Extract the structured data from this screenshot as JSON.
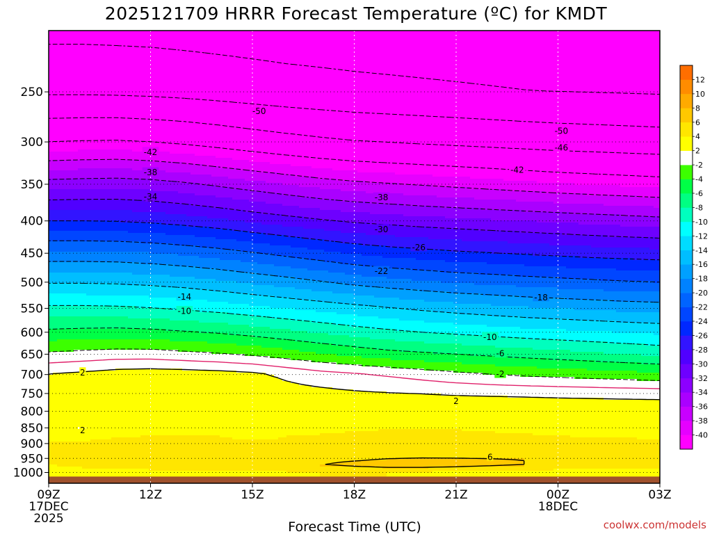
{
  "title": "2025121709 HRRR Forecast Temperature (ºC) for KMDT",
  "credit": "coolwx.com/models",
  "chart_data": {
    "type": "heatmap",
    "title": "2025121709 HRRR Forecast Temperature (ºC) for KMDT",
    "xlabel": "Forecast Time (UTC)",
    "ylabel": "",
    "x_range_hours_from_09Z": [
      0,
      18
    ],
    "y_range_hPa": [
      1040,
      200
    ],
    "y_scale": "log-pressure",
    "x_ticks": [
      {
        "h": 0,
        "lines": [
          "09Z",
          "17DEC",
          "2025"
        ]
      },
      {
        "h": 3,
        "lines": [
          "12Z"
        ]
      },
      {
        "h": 6,
        "lines": [
          "15Z"
        ]
      },
      {
        "h": 9,
        "lines": [
          "18Z"
        ]
      },
      {
        "h": 12,
        "lines": [
          "21Z"
        ]
      },
      {
        "h": 15,
        "lines": [
          "00Z",
          "18DEC"
        ]
      },
      {
        "h": 18,
        "lines": [
          "03Z"
        ]
      }
    ],
    "y_ticks": [
      250,
      300,
      350,
      400,
      450,
      500,
      550,
      600,
      650,
      700,
      750,
      800,
      850,
      900,
      950,
      1000
    ],
    "colorbar": [
      {
        "lo": -42,
        "hi": -40,
        "color": "#ff00ff",
        "label": "-40"
      },
      {
        "lo": -40,
        "hi": -38,
        "color": "#e600ff",
        "label": "-38"
      },
      {
        "lo": -38,
        "hi": -36,
        "color": "#c800ff",
        "label": "-36"
      },
      {
        "lo": -36,
        "hi": -34,
        "color": "#aa00ff",
        "label": "-34"
      },
      {
        "lo": -34,
        "hi": -32,
        "color": "#8c00ff",
        "label": "-32"
      },
      {
        "lo": -32,
        "hi": -30,
        "color": "#6e00ff",
        "label": "-30"
      },
      {
        "lo": -30,
        "hi": -28,
        "color": "#5000ff",
        "label": "-28"
      },
      {
        "lo": -28,
        "hi": -26,
        "color": "#3214ff",
        "label": "-26"
      },
      {
        "lo": -26,
        "hi": -24,
        "color": "#0028ff",
        "label": "-24"
      },
      {
        "lo": -24,
        "hi": -22,
        "color": "#0046ff",
        "label": "-22"
      },
      {
        "lo": -22,
        "hi": -20,
        "color": "#0064ff",
        "label": "-20"
      },
      {
        "lo": -20,
        "hi": -18,
        "color": "#0082ff",
        "label": "-18"
      },
      {
        "lo": -18,
        "hi": -16,
        "color": "#00a0ff",
        "label": "-16"
      },
      {
        "lo": -16,
        "hi": -14,
        "color": "#00beff",
        "label": "-14"
      },
      {
        "lo": -14,
        "hi": -12,
        "color": "#00dcff",
        "label": "-12"
      },
      {
        "lo": -12,
        "hi": -10,
        "color": "#00ffff",
        "label": "-10"
      },
      {
        "lo": -10,
        "hi": -8,
        "color": "#00ffbe",
        "label": "-8"
      },
      {
        "lo": -8,
        "hi": -6,
        "color": "#00ff82",
        "label": "-6"
      },
      {
        "lo": -6,
        "hi": -4,
        "color": "#00ff46",
        "label": "-4"
      },
      {
        "lo": -4,
        "hi": -2,
        "color": "#3cff00",
        "label": "-2"
      },
      {
        "lo": -2,
        "hi": 2,
        "color": "#ffffff",
        "label": "2"
      },
      {
        "lo": 2,
        "hi": 4,
        "color": "#ffff00",
        "label": "4"
      },
      {
        "lo": 4,
        "hi": 6,
        "color": "#ffe600",
        "label": "6"
      },
      {
        "lo": 6,
        "hi": 8,
        "color": "#ffc800",
        "label": "8"
      },
      {
        "lo": 8,
        "hi": 10,
        "color": "#ffaa00",
        "label": "10"
      },
      {
        "lo": 10,
        "hi": 12,
        "color": "#ff8c00",
        "label": "12"
      },
      {
        "lo": 12,
        "hi": 14,
        "color": "#ff6e00",
        "label": ""
      }
    ],
    "ground_color": "#a0522d",
    "series": [
      {
        "hPa": 1000,
        "values": [
          2.5,
          2.7,
          2.8,
          2.8,
          3.0,
          3.2,
          3.5,
          3.8,
          4.0,
          4.1,
          4.0,
          3.8,
          3.4,
          3.2,
          3.0,
          2.8,
          2.6,
          2.5,
          2.5
        ]
      },
      {
        "hPa": 975,
        "values": [
          3.8,
          4.6,
          5.6,
          5.8,
          5.8,
          5.7,
          5.6,
          5.7,
          6.0,
          6.5,
          6.9,
          7.0,
          6.9,
          6.5,
          6.0,
          5.7,
          5.5,
          5.3,
          5.2
        ]
      },
      {
        "hPa": 950,
        "values": [
          5.0,
          5.4,
          5.6,
          5.8,
          5.8,
          5.8,
          5.7,
          5.6,
          5.6,
          5.7,
          5.9,
          6.0,
          6.0,
          6.0,
          6.0,
          5.9,
          5.8,
          5.7,
          5.6
        ]
      },
      {
        "hPa": 925,
        "values": [
          4.8,
          5.0,
          5.1,
          5.3,
          5.3,
          5.2,
          5.1,
          5.0,
          5.2,
          5.3,
          5.4,
          5.4,
          5.3,
          5.3,
          5.3,
          5.1,
          5.0,
          4.9,
          4.8
        ]
      },
      {
        "hPa": 900,
        "values": [
          4.2,
          4.4,
          4.5,
          4.6,
          4.6,
          4.6,
          4.5,
          4.5,
          4.6,
          4.7,
          4.8,
          4.7,
          4.7,
          4.6,
          4.5,
          4.4,
          4.3,
          4.3,
          4.2
        ]
      },
      {
        "hPa": 850,
        "values": [
          2.5,
          1.9,
          3.2,
          3.4,
          3.5,
          3.4,
          2.0,
          3.4,
          3.6,
          3.8,
          3.9,
          3.9,
          3.9,
          3.8,
          3.7,
          3.6,
          3.5,
          3.5,
          3.4
        ]
      },
      {
        "hPa": 800,
        "values": [
          3.0,
          3.1,
          3.2,
          3.3,
          3.3,
          3.3,
          3.3,
          3.4,
          3.5,
          3.6,
          3.6,
          3.6,
          3.7,
          3.6,
          3.6,
          3.5,
          3.5,
          3.5,
          3.5
        ]
      },
      {
        "hPa": 750,
        "values": [
          2.5,
          2.7,
          2.8,
          2.9,
          3.0,
          3.0,
          2.9,
          2.8,
          2.6,
          2.3,
          2.1,
          2.0,
          1.8,
          1.7,
          1.6,
          1.5,
          1.4,
          1.3,
          1.2
        ]
      },
      {
        "hPa": 700,
        "values": [
          2.1,
          2.5,
          3.0,
          3.2,
          3.1,
          2.9,
          2.5,
          1.6,
          0.8,
          0.3,
          -0.2,
          -0.8,
          -1.4,
          -1.9,
          -2.3,
          -2.6,
          -2.9,
          -3.2,
          -3.5
        ]
      },
      {
        "hPa": 650,
        "values": [
          -1.6,
          -1.3,
          -1.0,
          -1.0,
          -1.4,
          -1.8,
          -2.3,
          -3.0,
          -3.8,
          -4.5,
          -5.2,
          -5.6,
          -6.0,
          -6.4,
          -6.8,
          -7.2,
          -7.6,
          -8.0,
          -8.4
        ]
      },
      {
        "hPa": 600,
        "values": [
          -5.5,
          -5.3,
          -5.2,
          -5.4,
          -5.8,
          -6.2,
          -6.8,
          -7.5,
          -8.2,
          -8.9,
          -9.5,
          -10.0,
          -10.4,
          -10.8,
          -11.2,
          -11.5,
          -11.8,
          -12.1,
          -12.4
        ]
      },
      {
        "hPa": 550,
        "values": [
          -9.5,
          -9.5,
          -9.6,
          -9.9,
          -10.3,
          -10.8,
          -11.4,
          -12.0,
          -12.6,
          -13.2,
          -13.8,
          -14.4,
          -14.9,
          -15.3,
          -15.7,
          -16.0,
          -16.3,
          -16.6,
          -16.8
        ]
      },
      {
        "hPa": 500,
        "values": [
          -14.2,
          -14.2,
          -14.3,
          -14.6,
          -15.0,
          -15.6,
          -16.3,
          -17.0,
          -17.8,
          -18.6,
          -19.2,
          -19.7,
          -20.2,
          -20.5,
          -20.9,
          -21.2,
          -21.5,
          -21.8,
          -22.0
        ]
      },
      {
        "hPa": 450,
        "values": [
          -19.5,
          -19.5,
          -19.6,
          -19.9,
          -20.4,
          -21.0,
          -21.8,
          -22.6,
          -23.4,
          -24.2,
          -24.8,
          -25.2,
          -25.6,
          -25.9,
          -26.2,
          -26.5,
          -26.8,
          -27.0,
          -27.2
        ]
      },
      {
        "hPa": 400,
        "values": [
          -26.0,
          -26.0,
          -26.1,
          -26.4,
          -26.9,
          -27.5,
          -28.3,
          -29.0,
          -29.7,
          -30.3,
          -30.7,
          -31.1,
          -31.4,
          -31.7,
          -32.0,
          -32.3,
          -32.6,
          -32.9,
          -33.2
        ]
      },
      {
        "hPa": 350,
        "values": [
          -33.0,
          -32.8,
          -32.7,
          -33.0,
          -33.6,
          -34.4,
          -35.2,
          -36.0,
          -36.8,
          -37.4,
          -37.8,
          -38.2,
          -38.6,
          -39.0,
          -39.4,
          -39.8,
          -40.1,
          -40.4,
          -40.7
        ]
      },
      {
        "hPa": 300,
        "values": [
          -42.0,
          -41.8,
          -41.7,
          -42.0,
          -42.5,
          -43.2,
          -44.0,
          -44.7,
          -45.3,
          -45.8,
          -46.1,
          -46.4,
          -46.7,
          -47.0,
          -47.3,
          -47.6,
          -47.8,
          -48.0,
          -48.2
        ]
      },
      {
        "hPa": 250,
        "values": [
          -50.5,
          -50.5,
          -50.6,
          -50.8,
          -51.1,
          -51.5,
          -51.9,
          -52.3,
          -52.6,
          -52.9,
          -53.1,
          -53.3,
          -53.5,
          -53.7,
          -53.9,
          -54.0,
          -54.1,
          -54.2,
          -54.3
        ]
      },
      {
        "hPa": 200,
        "values": [
          -55.0,
          -55.0,
          -55.1,
          -55.2,
          -55.4,
          -55.6,
          -55.8,
          -56.0,
          -56.1,
          -56.2,
          -56.3,
          -56.4,
          -56.5,
          -56.6,
          -56.7,
          -56.8,
          -56.9,
          -57.0,
          -57.1
        ]
      }
    ],
    "contour_labels": [
      {
        "text": "-50",
        "h": 6.2,
        "hPa": 268
      },
      {
        "text": "-50",
        "h": 15.1,
        "hPa": 288
      },
      {
        "text": "-46",
        "h": 15.1,
        "hPa": 306
      },
      {
        "text": "-42",
        "h": 3.0,
        "hPa": 311
      },
      {
        "text": "-42",
        "h": 13.8,
        "hPa": 332
      },
      {
        "text": "-38",
        "h": 3.0,
        "hPa": 335
      },
      {
        "text": "-38",
        "h": 9.8,
        "hPa": 367
      },
      {
        "text": "-34",
        "h": 3.0,
        "hPa": 366
      },
      {
        "text": "-30",
        "h": 9.8,
        "hPa": 412
      },
      {
        "text": "-26",
        "h": 10.9,
        "hPa": 440
      },
      {
        "text": "-22",
        "h": 9.8,
        "hPa": 480
      },
      {
        "text": "-18",
        "h": 14.5,
        "hPa": 528
      },
      {
        "text": "-14",
        "h": 4.0,
        "hPa": 527
      },
      {
        "text": "-10",
        "h": 4.0,
        "hPa": 555
      },
      {
        "text": "-10",
        "h": 13.0,
        "hPa": 610
      },
      {
        "text": "-6",
        "h": 13.3,
        "hPa": 648
      },
      {
        "text": "2",
        "h": 1.0,
        "hPa": 694
      },
      {
        "text": "-2",
        "h": 13.3,
        "hPa": 698
      },
      {
        "text": "2",
        "h": 12.0,
        "hPa": 770
      },
      {
        "text": "2",
        "h": 1.0,
        "hPa": 857
      },
      {
        "text": "6",
        "h": 13.0,
        "hPa": 945
      }
    ]
  }
}
